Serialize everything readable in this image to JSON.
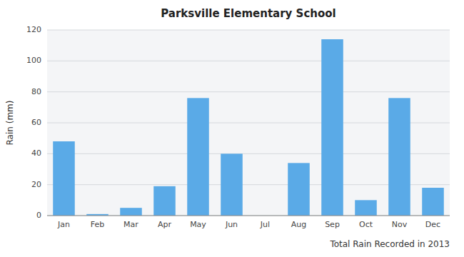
{
  "chart_data": {
    "type": "bar",
    "title": "Parksville Elementary School",
    "xlabel": "Total Rain Recorded in 2013",
    "ylabel": "Rain (mm)",
    "categories": [
      "Jan",
      "Feb",
      "Mar",
      "Apr",
      "May",
      "Jun",
      "Jul",
      "Aug",
      "Sep",
      "Oct",
      "Nov",
      "Dec"
    ],
    "values": [
      48,
      1,
      5,
      19,
      76,
      40,
      0,
      34,
      114,
      10,
      76,
      18
    ],
    "color": "#5aaae7",
    "ylim": [
      0,
      120
    ],
    "yticks": [
      0,
      20,
      40,
      60,
      80,
      100,
      120
    ],
    "grid": true
  }
}
